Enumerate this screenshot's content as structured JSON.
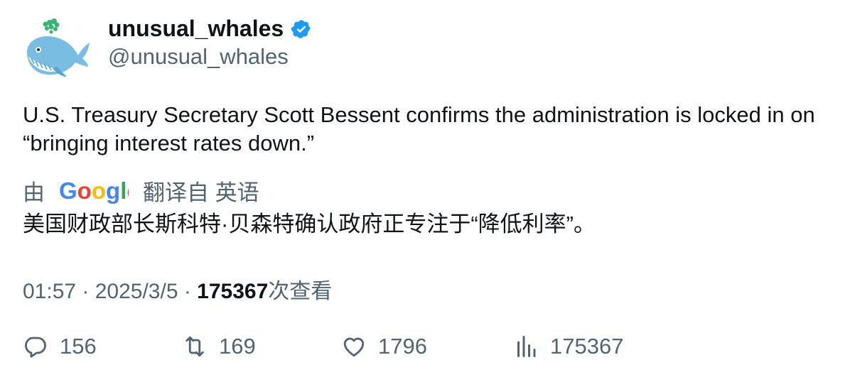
{
  "author": {
    "display_name": "unusual_whales",
    "handle": "@unusual_whales",
    "verified_icon": "verified-badge-icon",
    "avatar_icon": "whale-avatar"
  },
  "tweet": {
    "text": "U.S. Treasury Secretary Scott Bessent confirms the administration is locked in on “bringing interest rates down.”"
  },
  "translation": {
    "prefix": "由",
    "provider": "Google",
    "suffix": "翻译自 英语",
    "text": "美国财政部长斯科特·贝森特确认政府正专注于“降低利率”。"
  },
  "meta": {
    "time_date": "01:57 · 2025/3/5 · ",
    "views_count": "175367",
    "views_label": "次查看"
  },
  "actions": {
    "replies": "156",
    "retweets": "169",
    "likes": "1796",
    "views": "175367"
  },
  "colors": {
    "text": "#0f1419",
    "secondary": "#536471",
    "verified": "#1d9bf0"
  }
}
